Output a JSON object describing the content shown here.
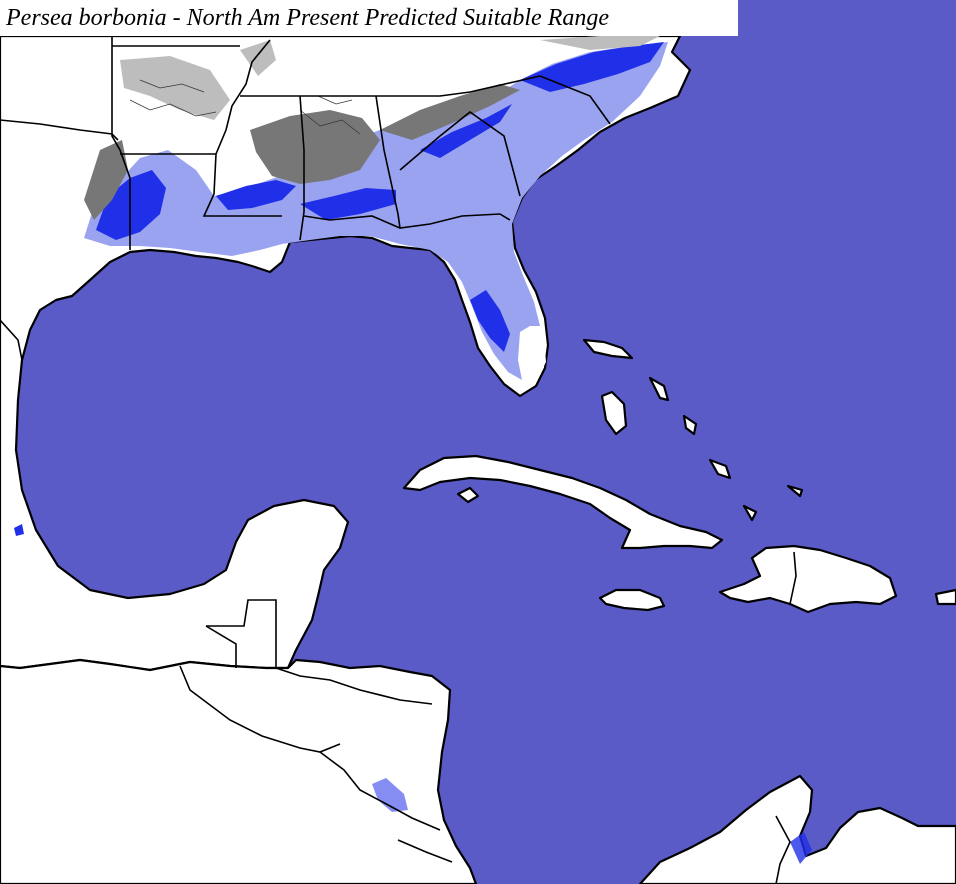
{
  "map": {
    "title": "Persea borbonia - North Am Present Predicted Suitable Range",
    "colors": {
      "water": "#5b5bc8",
      "land": "#ffffff",
      "boundary": "#000000",
      "suitable_low": "#9aa3f0",
      "suitable_high": "#2030e8",
      "relief": "#777777"
    }
  }
}
